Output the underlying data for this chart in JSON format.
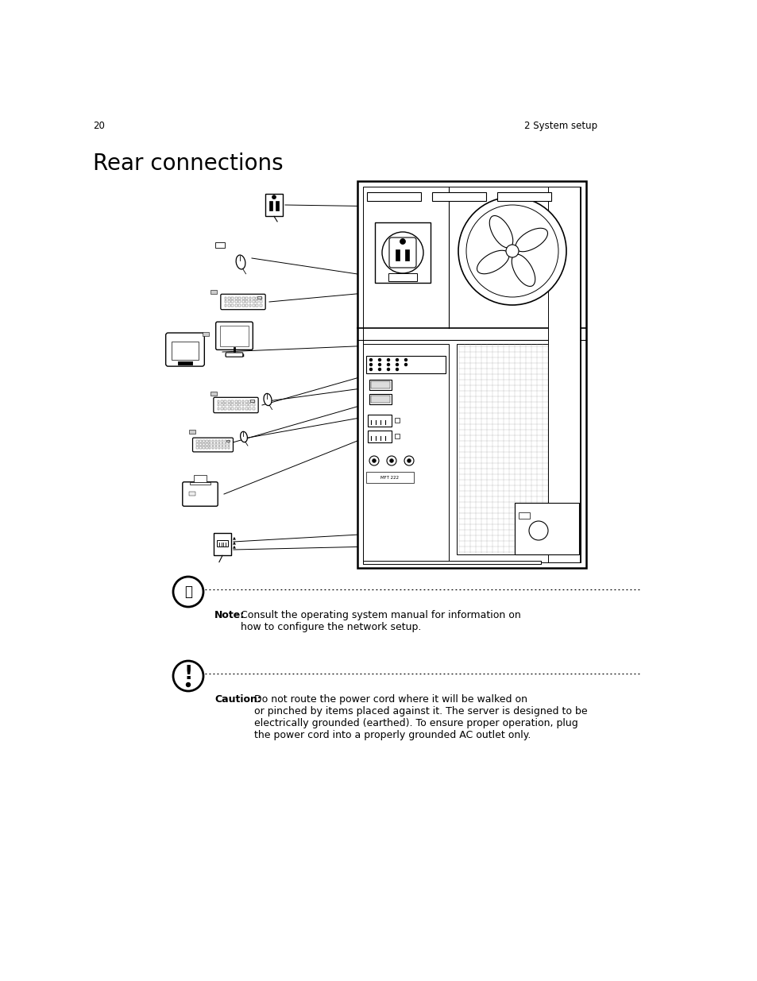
{
  "bg_color": "#ffffff",
  "page_num": "20",
  "page_section": "2 System setup",
  "title": "Rear connections",
  "title_fontsize": 20,
  "header_fontsize": 8.5,
  "body_fontsize": 9,
  "note_text": "Consult the operating system manual for information on\nhow to configure the network setup.",
  "caution_text": "Do not route the power cord where it will be walked on\nor pinched by items placed against it. The server is designed to be\nelectrically grounded (earthed). To ensure proper operation, plug\nthe power cord into a properly grounded AC outlet only."
}
